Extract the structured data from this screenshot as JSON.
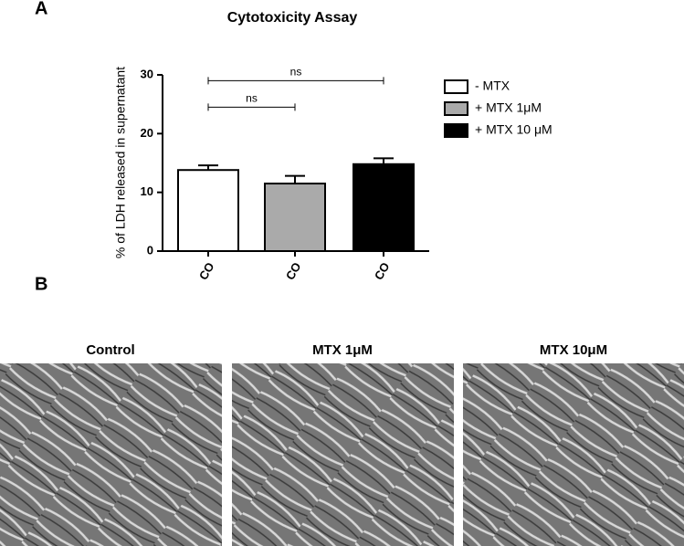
{
  "panels": {
    "a": "A",
    "b": "B"
  },
  "chart_data": {
    "type": "bar",
    "title": "Cytotoxicity Assay",
    "y_label": "% of LDH released in supernatant",
    "categories": [
      "CO",
      "CO",
      "CO"
    ],
    "series": [
      {
        "name": "- MTX",
        "color": "#ffffff",
        "values": [
          13.8,
          null,
          null
        ],
        "errors": [
          0.8,
          null,
          null
        ]
      },
      {
        "name": "+ MTX 1μM",
        "color": "#aaaaaa",
        "values": [
          null,
          11.5,
          null
        ],
        "errors": [
          null,
          1.3,
          null
        ]
      },
      {
        "name": "+ MTX 10 μM",
        "color": "#000000",
        "values": [
          null,
          null,
          14.8
        ],
        "errors": [
          null,
          null,
          1.0
        ]
      }
    ],
    "ylim": [
      0,
      30
    ],
    "yticks": [
      0,
      10,
      20,
      30
    ],
    "annotations": [
      {
        "from": 0,
        "to": 2,
        "y": 29,
        "label": "ns"
      },
      {
        "from": 0,
        "to": 1,
        "y": 24.5,
        "label": "ns"
      }
    ]
  },
  "images": [
    {
      "title": "Control"
    },
    {
      "title": "MTX 1μM"
    },
    {
      "title": "MTX 10μM"
    }
  ]
}
